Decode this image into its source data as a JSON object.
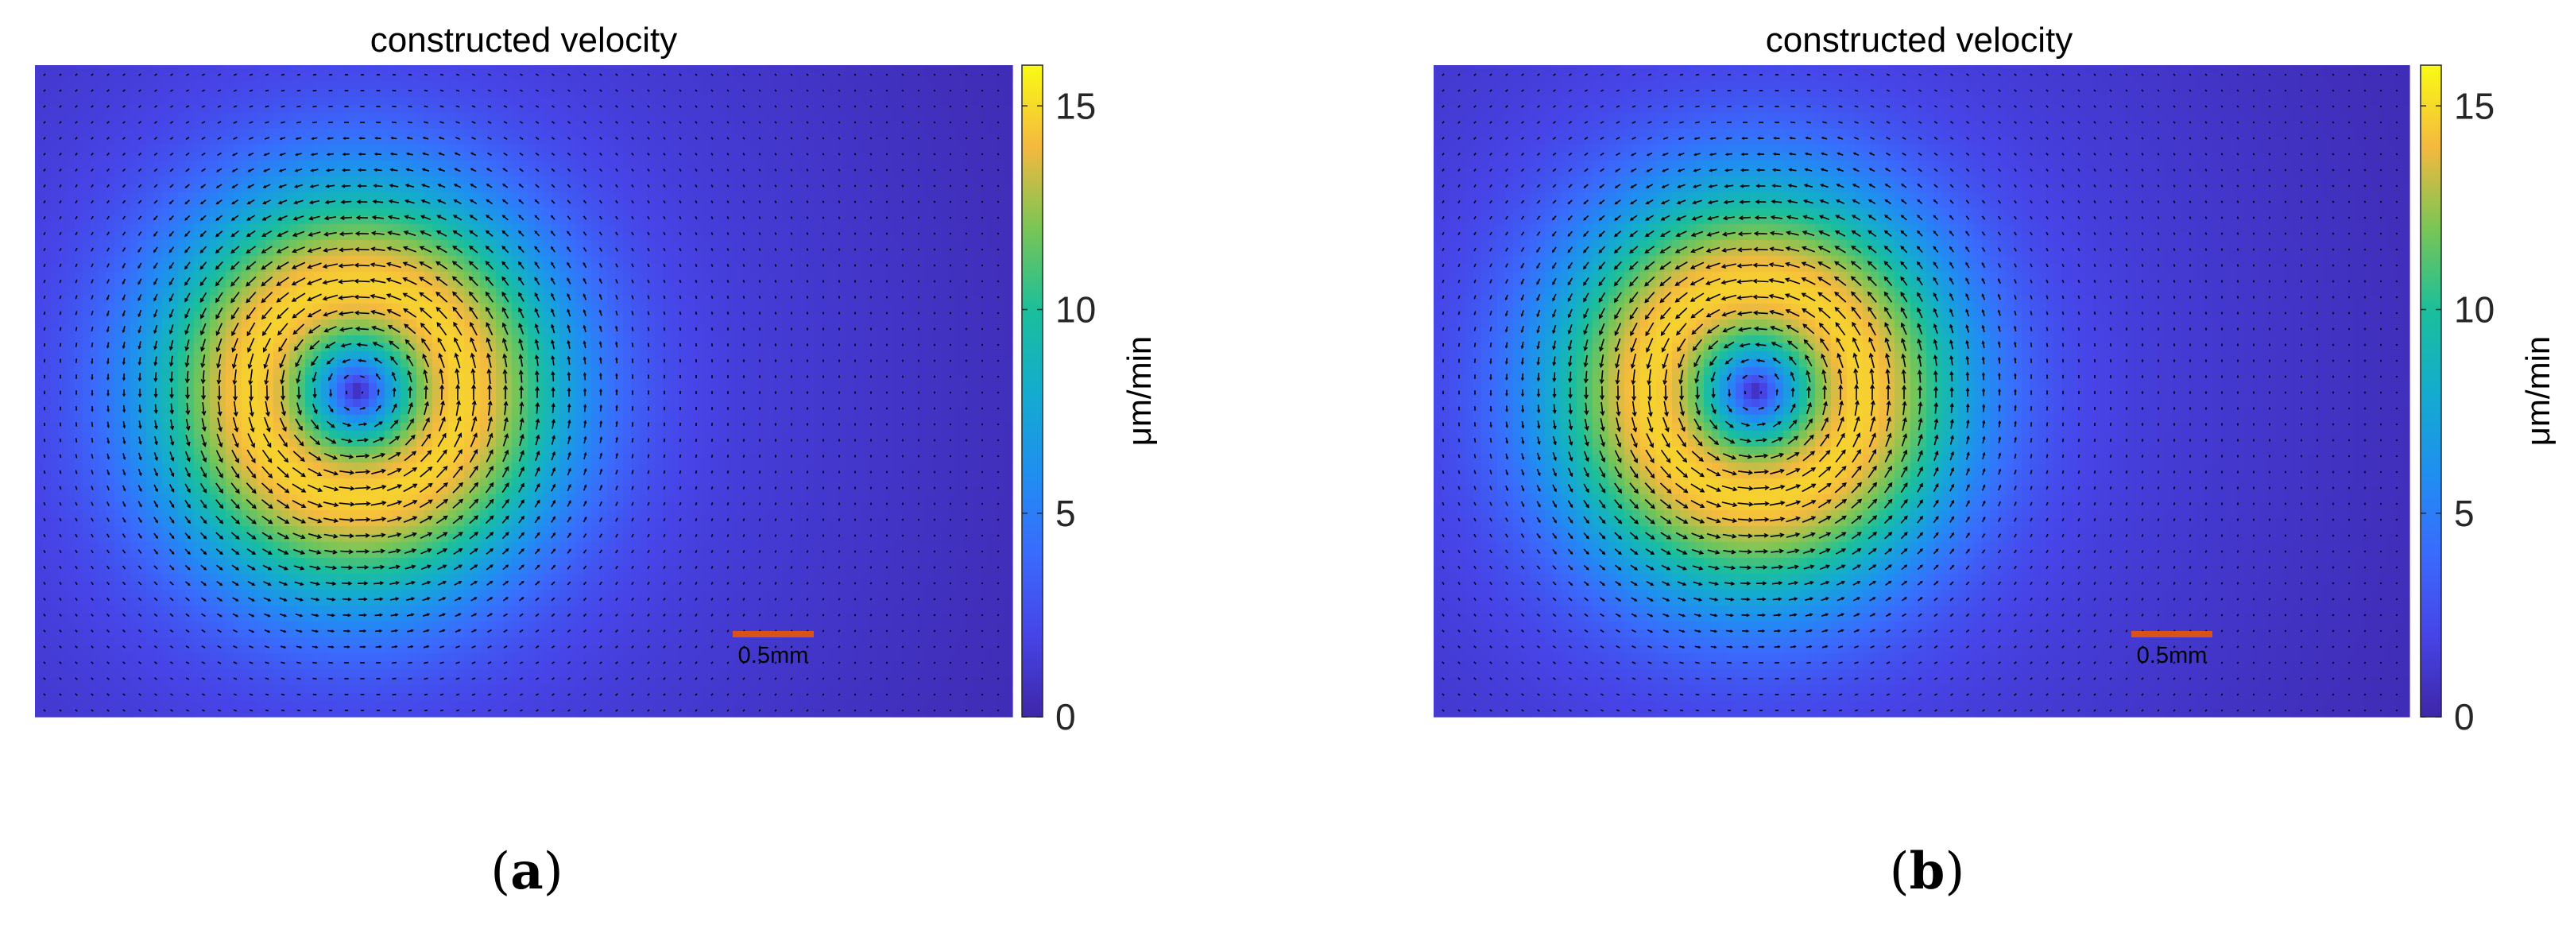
{
  "panels": [
    {
      "id": "a",
      "panel_label_paren_open": "(",
      "panel_label_letter": "a",
      "panel_label_paren_close": ")",
      "title": "constructed velocity",
      "scale_bar_label": "0.5mm",
      "colorbar": {
        "label": "μm/min",
        "ticks": [
          "0",
          "5",
          "10",
          "15"
        ]
      }
    },
    {
      "id": "b",
      "panel_label_paren_open": "(",
      "panel_label_letter": "b",
      "panel_label_paren_close": ")",
      "title": "constructed velocity",
      "scale_bar_label": "0.5mm",
      "colorbar": {
        "label": "μm/min",
        "ticks": [
          "0",
          "5",
          "10",
          "15"
        ]
      }
    }
  ],
  "colors": {
    "scale_bar": "#d95319",
    "arrow": "#000000",
    "colormap": "parula"
  },
  "chart_data": [
    {
      "type": "heatmap",
      "title": "constructed velocity",
      "quantity": "velocity magnitude with quiver arrows",
      "flow": "counter-clockwise vortex",
      "colorbar_label": "μm/min",
      "clim": [
        0,
        16
      ],
      "colorbar_ticks": [
        0,
        5,
        10,
        15
      ],
      "vortex_center_fraction": [
        0.33,
        0.5
      ],
      "peak_speed": 13.5,
      "scale_bar_length": "0.5mm"
    },
    {
      "type": "heatmap",
      "title": "constructed velocity",
      "quantity": "velocity magnitude with quiver arrows",
      "flow": "counter-clockwise vortex",
      "colorbar_label": "μm/min",
      "clim": [
        0,
        16
      ],
      "colorbar_ticks": [
        0,
        5,
        10,
        15
      ],
      "vortex_center_fraction": [
        0.33,
        0.5
      ],
      "peak_speed": 13.5,
      "scale_bar_length": "0.5mm"
    }
  ]
}
